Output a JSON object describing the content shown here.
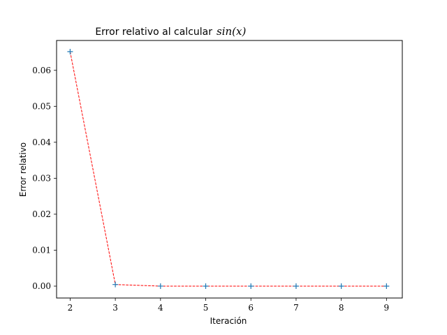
{
  "chart_data": {
    "type": "line",
    "title_text": "Error relativo al calcular",
    "title_math": "sin(x)",
    "xlabel": "Iteración",
    "ylabel": "Error relativo",
    "x": [
      2,
      3,
      4,
      5,
      6,
      7,
      8,
      9
    ],
    "y": [
      0.0652,
      0.00045,
      1e-05,
      0.0,
      0.0,
      0.0,
      0.0,
      0.0
    ],
    "xlim": [
      1.7,
      9.35
    ],
    "ylim": [
      -0.0033,
      0.0683
    ],
    "xticks": [
      2,
      3,
      4,
      5,
      6,
      7,
      8,
      9
    ],
    "xtick_labels": [
      "2",
      "3",
      "4",
      "5",
      "6",
      "7",
      "8",
      "9"
    ],
    "yticks": [
      0.0,
      0.01,
      0.02,
      0.03,
      0.04,
      0.05,
      0.06
    ],
    "ytick_labels": [
      "0.00",
      "0.01",
      "0.02",
      "0.03",
      "0.04",
      "0.05",
      "0.06"
    ],
    "grid": false,
    "line_color": "#ff0000",
    "line_style": "dashed",
    "marker": "+",
    "marker_color": "#1f77b4"
  }
}
